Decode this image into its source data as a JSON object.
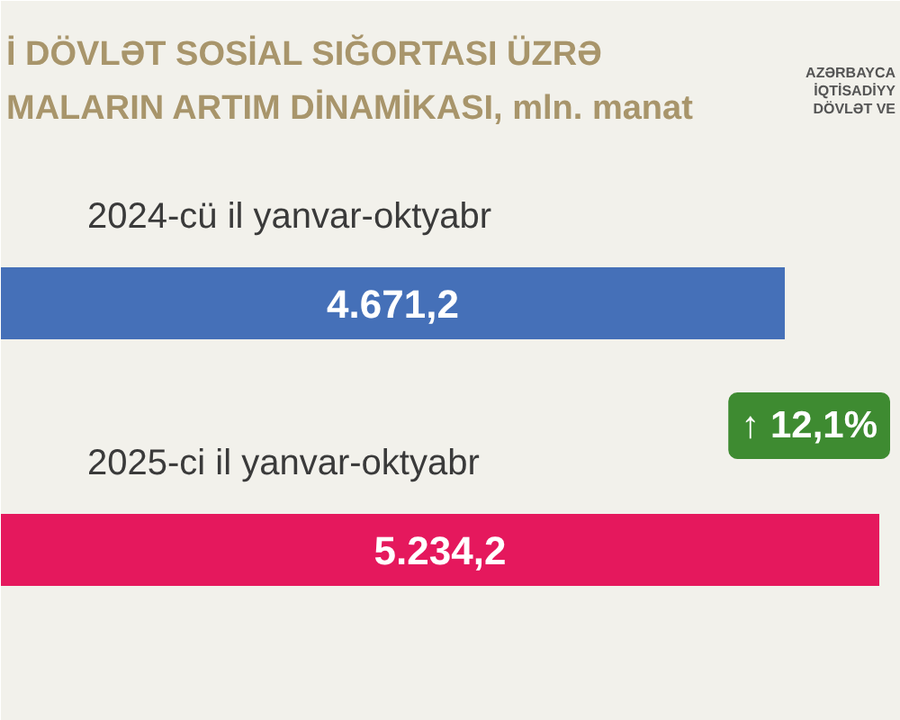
{
  "chart_data": {
    "type": "bar",
    "orientation": "horizontal",
    "title": "İ DÖVLƏT SOSİAL SIĞORTASI ÜZRƏ\nMALARIN ARTIM DİNAMİKASI, mln. manat",
    "categories": [
      "2024-cü il yanvar-oktyabr",
      "2025-ci il yanvar-oktyabr"
    ],
    "values": [
      4671.2,
      5234.2
    ],
    "colors": [
      "#4570b8",
      "#e5185d"
    ],
    "value_labels": [
      "4.671,2",
      "5.234,2"
    ],
    "tick_labels": "y",
    "annotations": [
      "↑ 12,1%",
      "AZƏRBAYCA\nİQTİSADİYY\nDÖVLƏT VE"
    ]
  }
}
